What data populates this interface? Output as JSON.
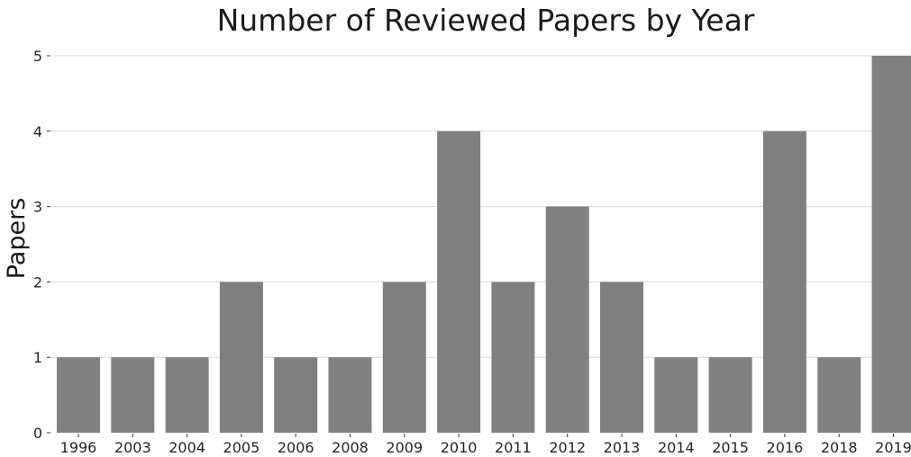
{
  "chart_data": {
    "type": "bar",
    "title": "Number of Reviewed Papers by Year",
    "xlabel": "",
    "ylabel": "Papers",
    "categories": [
      "1996",
      "2003",
      "2004",
      "2005",
      "2006",
      "2008",
      "2009",
      "2010",
      "2011",
      "2012",
      "2013",
      "2014",
      "2015",
      "2016",
      "2018",
      "2019"
    ],
    "values": [
      1,
      1,
      1,
      2,
      1,
      1,
      2,
      4,
      2,
      3,
      2,
      1,
      1,
      4,
      1,
      5
    ],
    "ylim": [
      0,
      5
    ],
    "yticks": [
      0,
      1,
      2,
      3,
      4,
      5
    ],
    "grid": "horizontal",
    "legend": "none",
    "bar_color": "#808080"
  }
}
